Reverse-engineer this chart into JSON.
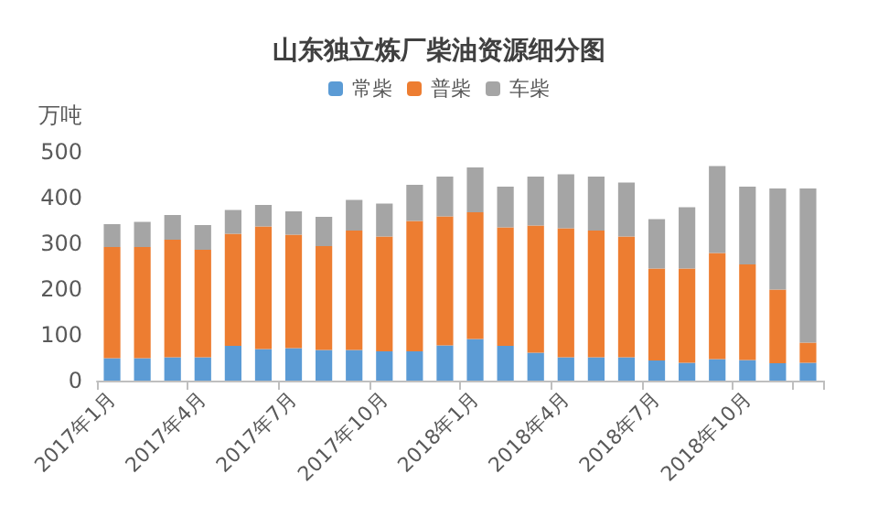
{
  "chart_data": {
    "type": "bar",
    "stacked": true,
    "title": "山东独立炼厂柴油资源细分图",
    "ylabel": "万吨",
    "categories": [
      "2017年1月",
      null,
      null,
      "2017年4月",
      null,
      null,
      "2017年7月",
      null,
      null,
      "2017年10月",
      null,
      null,
      "2018年1月",
      null,
      null,
      "2018年4月",
      null,
      null,
      "2018年7月",
      null,
      null,
      "2018年10月",
      null,
      null
    ],
    "series": [
      {
        "name": "常柴",
        "color": "#5b9bd5",
        "values": [
          49,
          49,
          51,
          51,
          76,
          69,
          71,
          67,
          67,
          64,
          64,
          77,
          91,
          76,
          61,
          51,
          51,
          51,
          44,
          39,
          47,
          45,
          38,
          39
        ]
      },
      {
        "name": "普柴",
        "color": "#ed7d31",
        "values": [
          243,
          243,
          257,
          235,
          245,
          268,
          248,
          227,
          261,
          251,
          285,
          282,
          277,
          259,
          278,
          282,
          277,
          264,
          201,
          206,
          232,
          209,
          161,
          44
        ]
      },
      {
        "name": "车柴",
        "color": "#a5a5a5",
        "values": [
          50,
          55,
          54,
          54,
          52,
          47,
          51,
          64,
          67,
          72,
          79,
          87,
          98,
          89,
          107,
          118,
          118,
          118,
          108,
          134,
          190,
          170,
          221,
          337
        ]
      }
    ],
    "ylim": [
      0,
      500
    ],
    "yticks": [
      0,
      100,
      200,
      300,
      400,
      500
    ],
    "legend": "top"
  }
}
